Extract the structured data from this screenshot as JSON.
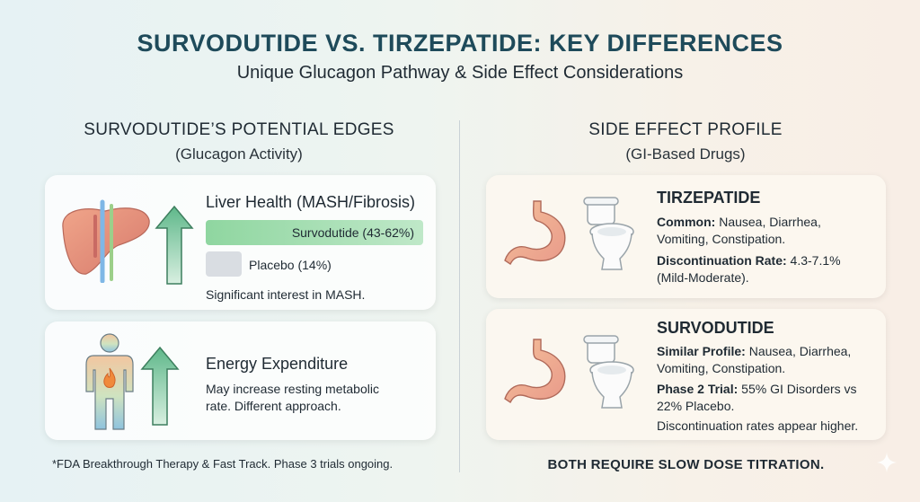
{
  "header": {
    "title": "SURVODUTIDE VS. TIRZEPATIDE: KEY DIFFERENCES",
    "subtitle": "Unique Glucagon Pathway & Side Effect Considerations"
  },
  "left": {
    "heading": "SURVODUTIDE’S POTENTIAL EDGES",
    "subheading": "(Glucagon Activity)",
    "liver_card": {
      "title": "Liver Health (MASH/Fibrosis)",
      "bar_survodutide_label": "Survodutide (43-62%)",
      "bar_placebo_label": "Placebo (14%)",
      "note": "Significant interest in MASH."
    },
    "energy_card": {
      "title": "Energy Expenditure",
      "line1": "May increase resting metabolic",
      "line2": "rate. Different approach."
    },
    "footnote": "*FDA Breakthrough Therapy & Fast Track. Phase 3 trials ongoing."
  },
  "right": {
    "heading": "SIDE EFFECT PROFILE",
    "subheading": "(GI-Based Drugs)",
    "tirzepatide_card": {
      "title": "TIRZEPATIDE",
      "common_label": "Common:",
      "common_line1": " Nausea, Diarrhea,",
      "common_line2": "Vomiting, Constipation.",
      "disc_label": "Discontinuation Rate:",
      "disc_line1": " 4.3-7.1%",
      "disc_line2": "(Mild-Moderate)."
    },
    "survodutide_card": {
      "title": "SURVODUTIDE",
      "similar_label": "Similar Profile:",
      "similar_line1": " Nausea, Diarrhea,",
      "similar_line2": "Vomiting, Constipation.",
      "phase_label": "Phase 2 Trial:",
      "phase_line1": " 55% GI Disorders vs",
      "phase_line2": "22% Placebo.",
      "disc_note": "Discontinuation rates appear higher."
    },
    "bottom_line": "BOTH REQUIRE SLOW DOSE TITRATION."
  },
  "colors": {
    "title": "#1e4a5a",
    "bar_green": "#8fd6a0",
    "bar_gray": "#d9dde2",
    "arrow_green": "#5fb88a"
  },
  "icons": [
    "liver-icon",
    "up-arrow-icon",
    "human-flame-icon",
    "stomach-icon",
    "toilet-icon",
    "sparkle-icon"
  ],
  "measures": {
    "survodutide_bar_fraction": 1.0,
    "placebo_bar_fraction": 0.17
  }
}
